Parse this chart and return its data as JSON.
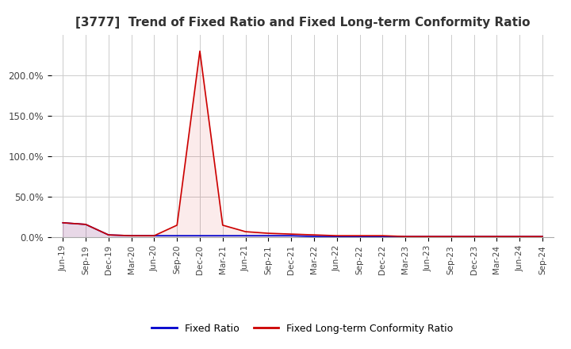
{
  "title": "[3777]  Trend of Fixed Ratio and Fixed Long-term Conformity Ratio",
  "title_fontsize": 11,
  "x_labels": [
    "Jun-19",
    "Sep-19",
    "Dec-19",
    "Mar-20",
    "Jun-20",
    "Sep-20",
    "Dec-20",
    "Mar-21",
    "Jun-21",
    "Sep-21",
    "Dec-21",
    "Mar-22",
    "Jun-22",
    "Sep-22",
    "Dec-22",
    "Mar-23",
    "Jun-23",
    "Sep-23",
    "Dec-23",
    "Mar-24",
    "Jun-24",
    "Sep-24"
  ],
  "fixed_ratio": [
    0.18,
    0.16,
    0.03,
    0.02,
    0.02,
    0.02,
    0.02,
    0.02,
    0.02,
    0.02,
    0.02,
    0.01,
    0.01,
    0.01,
    0.01,
    0.01,
    0.01,
    0.01,
    0.01,
    0.01,
    0.01,
    0.01
  ],
  "fixed_lt_ratio": [
    0.18,
    0.16,
    0.03,
    0.02,
    0.02,
    0.15,
    2.3,
    0.15,
    0.07,
    0.05,
    0.04,
    0.03,
    0.02,
    0.02,
    0.02,
    0.01,
    0.01,
    0.01,
    0.01,
    0.01,
    0.01,
    0.01
  ],
  "fixed_ratio_color": "#0000cc",
  "fixed_lt_ratio_color": "#cc0000",
  "ylim": [
    0.0,
    2.5
  ],
  "yticks": [
    0.0,
    0.5,
    1.0,
    1.5,
    2.0
  ],
  "ytick_labels": [
    "0.0%",
    "50.0%",
    "100.0%",
    "150.0%",
    "200.0%"
  ],
  "grid_color": "#cccccc",
  "background_color": "#ffffff",
  "legend_fixed_ratio": "Fixed Ratio",
  "legend_fixed_lt_ratio": "Fixed Long-term Conformity Ratio"
}
